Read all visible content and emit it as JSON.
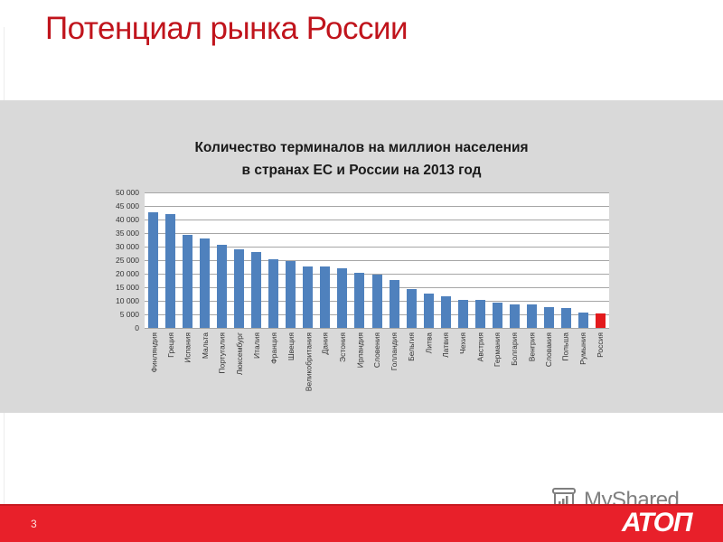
{
  "slide": {
    "title": "Потенциал рынка России",
    "number": "3",
    "logo": "АТОП",
    "watermark": "MyShared"
  },
  "colors": {
    "title": "#c0141c",
    "bar": "#4f81bd",
    "highlight_bar": "#e31a1c",
    "footer": "#e8202a",
    "band": "#d9d9d9"
  },
  "chart_data": {
    "type": "bar",
    "title": "Количество терминалов на миллион населения в странах ЕС и России на 2013 год",
    "title_lines": [
      "Количество терминалов на миллион населения",
      "в странах ЕС и России на 2013 год"
    ],
    "xlabel": "",
    "ylabel": "",
    "ylim": [
      0,
      50000
    ],
    "yticks": [
      0,
      5000,
      10000,
      15000,
      20000,
      25000,
      30000,
      35000,
      40000,
      45000,
      50000
    ],
    "ytick_labels": [
      "0",
      "5 000",
      "10 000",
      "15 000",
      "20 000",
      "25 000",
      "30 000",
      "35 000",
      "40 000",
      "45 000",
      "50 000"
    ],
    "grid": true,
    "legend": null,
    "highlight": "Россия",
    "categories": [
      "Финляндия",
      "Греция",
      "Испания",
      "Мальта",
      "Португалия",
      "Люксембург",
      "Италия",
      "Франция",
      "Швеция",
      "Великобритания",
      "Дания",
      "Эстония",
      "Ирландия",
      "Словения",
      "Голландия",
      "Бельгия",
      "Литва",
      "Латвия",
      "Чехия",
      "Австрия",
      "Германия",
      "Болгария",
      "Венгрия",
      "Словакия",
      "Польша",
      "Румыния",
      "Россия"
    ],
    "values": [
      42800,
      41900,
      34500,
      32900,
      30700,
      29000,
      28100,
      25200,
      24800,
      22800,
      22600,
      22100,
      20400,
      19600,
      17700,
      14300,
      12700,
      11800,
      10300,
      10300,
      9200,
      8800,
      8800,
      7700,
      7200,
      5500,
      5300
    ]
  }
}
